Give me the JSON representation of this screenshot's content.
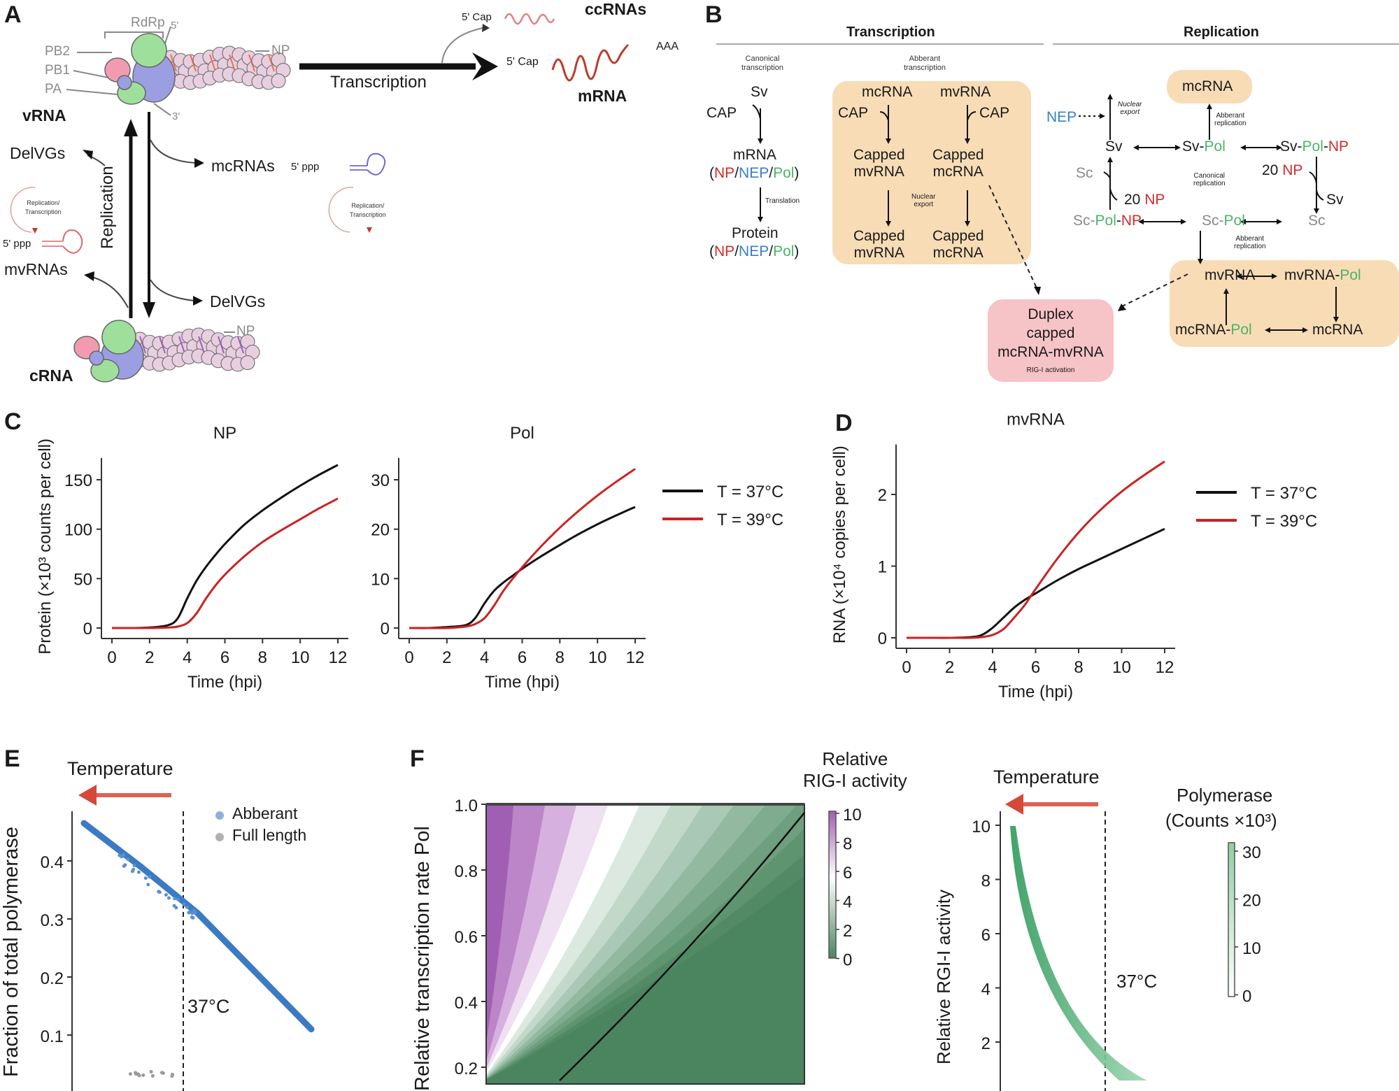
{
  "panels": {
    "A": {
      "label": "A",
      "rdrp": "RdRp",
      "subunits": [
        "PB2",
        "PB1",
        "PA"
      ],
      "end5": "5'",
      "end3": "3'",
      "np": "NP",
      "vrna": "vRNA",
      "crna": "cRNA",
      "transcription": "Transcription",
      "replication": "Replication",
      "cap5_top": "5' Cap",
      "ccrnas": "ccRNAs",
      "cap5_mrna": "5' Cap",
      "aaa": "AAA",
      "mrna": "mRNA",
      "delvgs_top": "DelVGs",
      "delvgs_bottom": "DelVGs",
      "mcrnas": "mcRNAs",
      "ppp_mc": "5' ppp",
      "ppp_mv": "5' ppp",
      "mvrnas": "mvRNAs",
      "rep_trans_1": "Replication/\nTranscription",
      "rep_trans_2": "Replication/\nTranscription",
      "colors": {
        "PB2": "#f29bb0",
        "PB1": "#9b9ee0",
        "PA": "#9ee09b",
        "NP": "#e8cfe0",
        "mrna": "#c0392b"
      }
    },
    "B": {
      "label": "B",
      "transcription_header": "Transcription",
      "replication_header": "Replication",
      "canonical_transcription": "Canonical\ntranscription",
      "aberrant_transcription": "Abberant\ntranscription",
      "sv": "Sv",
      "cap": "CAP",
      "mrna": "mRNA",
      "translation": "Translation",
      "protein": "Protein",
      "np": "NP",
      "nep": "NEP",
      "pol": "Pol",
      "mcrna": "mcRNA",
      "mvrna": "mvRNA",
      "capped_mvrna": "Capped\nmvRNA",
      "capped_mcrna": "Capped\nmcRNA",
      "nuclear_export": "Nuclear\nexport",
      "aberrant_replication": "Abberant\nreplication",
      "canonical_replication": "Canonical\nreplication",
      "twenty_np": "20",
      "sc": "Sc",
      "duplex": "Duplex\ncapped\nmcRNA-mvRNA",
      "rig_activation": "RIG-I activation",
      "mvrna_pol": "mvRNA-",
      "mcrna_pol": "mcRNA-"
    },
    "C": {
      "label": "C"
    },
    "D": {
      "label": "D"
    },
    "E": {
      "label": "E",
      "temperature": "Temperature",
      "ylabel": "Fraction of total polymerase",
      "yticks": [
        "0.4",
        "0.3",
        "0.2",
        "0.1"
      ],
      "marker": "37°C",
      "legend": [
        {
          "label": "Abberant",
          "color": "#3b7bc4"
        },
        {
          "label": "Full length",
          "color": "#9a9a9a"
        }
      ]
    },
    "F": {
      "label": "F",
      "ylabel": "Relative transcription rate Pol",
      "yticks": [
        "1.0",
        "0.8",
        "0.6",
        "0.4",
        "0.2"
      ],
      "colorbar_title": "Relative\nRIG-I activity",
      "colorbar_ticks": [
        "10",
        "8",
        "6",
        "4",
        "2",
        "0"
      ]
    },
    "G": {
      "temperature": "Temperature",
      "ylabel": "Relative RGI-I activity",
      "yticks": [
        "10",
        "8",
        "6",
        "4",
        "2"
      ],
      "marker": "37°C",
      "colorbar_title": "Polymerase",
      "colorbar_subtitle": "(Counts ×10³)",
      "colorbar_ticks": [
        "30",
        "20",
        "10",
        "0"
      ]
    }
  },
  "chart_data": [
    {
      "id": "C-NP",
      "type": "line",
      "title": "NP",
      "xlabel": "Time (hpi)",
      "ylabel": "Protein (×10³ counts per cell)",
      "xlim": [
        0,
        12
      ],
      "ylim": [
        0,
        165
      ],
      "xticks": [
        0,
        2,
        4,
        6,
        8,
        10,
        12
      ],
      "yticks": [
        0,
        50,
        100,
        150
      ],
      "x": [
        0,
        1,
        2,
        3,
        3.5,
        4,
        4.5,
        5,
        5.5,
        6,
        7,
        8,
        9,
        10,
        11,
        12
      ],
      "series": [
        {
          "name": "T = 37°C",
          "color": "#111111",
          "values": [
            0,
            0,
            0.5,
            3,
            10,
            30,
            48,
            62,
            74,
            85,
            104,
            119,
            132,
            144,
            155,
            165
          ]
        },
        {
          "name": "T = 39°C",
          "color": "#cc2222",
          "values": [
            0,
            0,
            0,
            0.5,
            1.5,
            5,
            15,
            30,
            43,
            54,
            72,
            87,
            99,
            110,
            121,
            131
          ]
        }
      ]
    },
    {
      "id": "C-Pol",
      "type": "line",
      "title": "Pol",
      "xlabel": "Time (hpi)",
      "ylabel": "",
      "xlim": [
        0,
        12
      ],
      "ylim": [
        0,
        33
      ],
      "xticks": [
        0,
        2,
        4,
        6,
        8,
        10,
        12
      ],
      "yticks": [
        0,
        10,
        20,
        30
      ],
      "x": [
        0,
        1,
        2,
        3,
        3.5,
        4,
        4.5,
        5,
        5.5,
        6,
        7,
        8,
        9,
        10,
        11,
        12
      ],
      "series": [
        {
          "name": "T = 37°C",
          "color": "#111111",
          "values": [
            0,
            0,
            0.2,
            0.6,
            2,
            5,
            7.5,
            9.2,
            10.6,
            12,
            14.5,
            16.8,
            19,
            21,
            22.8,
            24.5
          ]
        },
        {
          "name": "T = 39°C",
          "color": "#cc2222",
          "values": [
            0,
            0,
            0,
            0.3,
            0.8,
            2,
            4.5,
            7.5,
            10,
            12.3,
            16.5,
            20.3,
            23.7,
            26.8,
            29.6,
            32.2
          ]
        }
      ],
      "legend": "right"
    },
    {
      "id": "D-mvRNA",
      "type": "line",
      "title": "mvRNA",
      "xlabel": "Time (hpi)",
      "ylabel": "RNA (×10⁴ copies per cell)",
      "xlim": [
        0,
        12
      ],
      "ylim": [
        0,
        2.6
      ],
      "xticks": [
        0,
        2,
        4,
        6,
        8,
        10,
        12
      ],
      "yticks": [
        0,
        1,
        2
      ],
      "x": [
        0,
        1,
        2,
        3,
        3.5,
        4,
        4.5,
        5,
        5.5,
        6,
        7,
        8,
        9,
        10,
        11,
        12
      ],
      "series": [
        {
          "name": "T = 37°C",
          "color": "#111111",
          "values": [
            0,
            0,
            0,
            0.01,
            0.04,
            0.14,
            0.28,
            0.42,
            0.53,
            0.62,
            0.8,
            0.96,
            1.1,
            1.24,
            1.38,
            1.52
          ]
        },
        {
          "name": "T = 39°C",
          "color": "#cc2222",
          "values": [
            0,
            0,
            0,
            0,
            0.01,
            0.04,
            0.12,
            0.28,
            0.46,
            0.68,
            1.1,
            1.47,
            1.78,
            2.04,
            2.26,
            2.46
          ]
        }
      ],
      "legend": "right"
    },
    {
      "id": "E-fraction",
      "type": "scatter",
      "ylabel": "Fraction of total polymerase",
      "ylim": [
        0,
        0.5
      ],
      "yticks": [
        0.1,
        0.2,
        0.3,
        0.4
      ],
      "series": [
        {
          "name": "Abberant",
          "color": "#3b7bc4",
          "x": [
            0,
            0.25,
            0.5,
            0.75,
            1.0
          ],
          "values": [
            0.465,
            0.39,
            0.31,
            0.21,
            0.11
          ]
        }
      ],
      "annotations": [
        "37°C",
        "Temperature"
      ]
    },
    {
      "id": "F-heatmap",
      "type": "heatmap",
      "ylabel": "Relative transcription rate Pol",
      "ylim": [
        0.2,
        1.0
      ],
      "yticks": [
        0.2,
        0.4,
        0.6,
        0.8,
        1.0
      ],
      "colorbar": {
        "title": "Relative RIG-I activity",
        "range": [
          0,
          10
        ],
        "ticks": [
          0,
          2,
          4,
          6,
          8,
          10
        ]
      }
    },
    {
      "id": "G-rigi",
      "type": "scatter",
      "ylabel": "Relative RGI-I activity",
      "ylim": [
        0,
        10.5
      ],
      "yticks": [
        2,
        4,
        6,
        8,
        10
      ],
      "colorbar": {
        "title": "Polymerase (Counts ×10³)",
        "range": [
          0,
          30
        ],
        "ticks": [
          0,
          10,
          20,
          30
        ]
      }
    }
  ]
}
